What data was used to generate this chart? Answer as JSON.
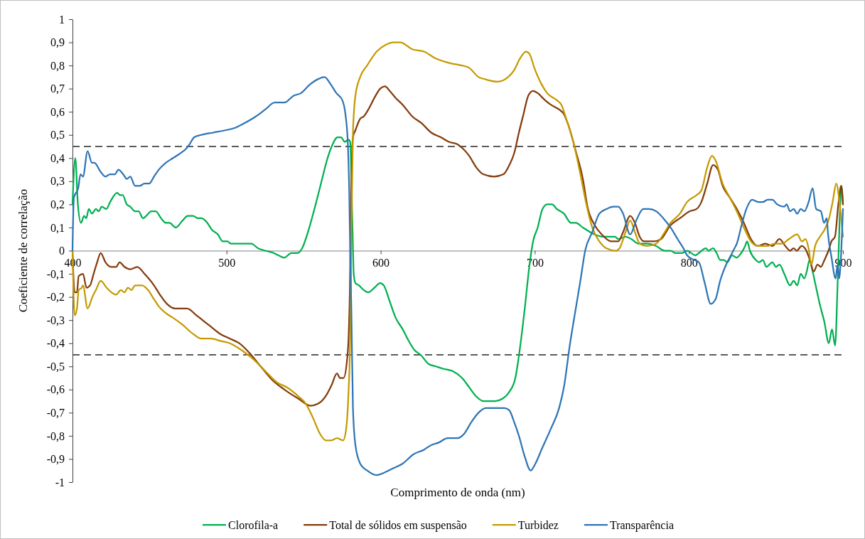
{
  "chart_data": {
    "type": "line",
    "xlabel": "Comprimento de onda (nm)",
    "ylabel": "Coeficiente de correlação",
    "xlim": [
      400,
      900
    ],
    "ylim": [
      -1,
      1
    ],
    "xticks": [
      400,
      500,
      600,
      700,
      800,
      900
    ],
    "yticks": [
      -1,
      {
        "value": -0.9,
        "label": "-0,9"
      },
      {
        "value": -0.8,
        "label": "-0,8"
      },
      {
        "value": -0.7,
        "label": "-0,7"
      },
      {
        "value": -0.6,
        "label": "-0,6"
      },
      {
        "value": -0.5,
        "label": "-0,5"
      },
      {
        "value": -0.4,
        "label": "-0,4"
      },
      {
        "value": -0.3,
        "label": "-0,3"
      },
      {
        "value": -0.2,
        "label": "-0,2"
      },
      {
        "value": -0.1,
        "label": "-0,1"
      },
      0,
      {
        "value": 0.1,
        "label": "0,1"
      },
      {
        "value": 0.2,
        "label": "0,2"
      },
      {
        "value": 0.3,
        "label": "0,3"
      },
      {
        "value": 0.4,
        "label": "0,4"
      },
      {
        "value": 0.5,
        "label": "0,5"
      },
      {
        "value": 0.6,
        "label": "0,6"
      },
      {
        "value": 0.7,
        "label": "0,7"
      },
      {
        "value": 0.8,
        "label": "0,8"
      },
      {
        "value": 0.9,
        "label": "0,9"
      },
      1
    ],
    "legend": "bottom",
    "ref_lines": [
      {
        "axis": "y",
        "value": 0.45,
        "color": "#262626",
        "line_style": "dashed"
      },
      {
        "axis": "y",
        "value": -0.45,
        "color": "#262626",
        "line_style": "dashed"
      }
    ],
    "series": [
      {
        "name": "Clorofila-a",
        "color": "#00b050",
        "x": [
          400,
          401.8,
          403.5,
          405.5,
          407.5,
          408.9,
          410.6,
          412.6,
          415.2,
          417,
          419,
          422,
          424.4,
          429,
          430.8,
          432.6,
          435.2,
          437.5,
          440.6,
          442.9,
          445.7,
          451.3,
          454,
          457.5,
          460.6,
          463,
          467,
          471.4,
          474.8,
          478.3,
          481.4,
          483.7,
          487.5,
          490.5,
          494.4,
          497.5,
          500.5,
          502.9,
          506,
          515.9,
          520.5,
          525,
          530.5,
          533.6,
          537.5,
          542,
          546,
          549,
          552.8,
          557.4,
          562,
          565.1,
          568.2,
          572,
          574.3,
          576.7,
          579,
          580.2,
          581.7,
          582.5,
          583.6,
          585.9,
          589,
          592,
          595.9,
          599.7,
          602,
          605.9,
          609.7,
          614.3,
          618.2,
          622,
          625.9,
          631.2,
          635.8,
          640.4,
          646.6,
          652.8,
          657.4,
          662,
          666.6,
          674.3,
          679,
          683.5,
          687.4,
          690.4,
          693.5,
          696.6,
          698.9,
          701.9,
          705,
          708.1,
          711.2,
          714.3,
          718.9,
          723.5,
          726.6,
          731.2,
          738.9,
          745,
          752,
          754.2,
          758.9,
          762.7,
          767.3,
          772.7,
          778.8,
          784.2,
          788.1,
          791.2,
          795.7,
          798.8,
          804.2,
          806.5,
          811.1,
          812.6,
          815.7,
          818,
          820.3,
          822.6,
          825,
          828,
          831,
          834,
          836.5,
          837.8,
          839.6,
          843.4,
          845.7,
          848,
          850.3,
          854.2,
          856.5,
          858.8,
          861.9,
          865.7,
          868,
          870.3,
          872.6,
          874.9,
          876.5,
          878.3,
          880.3,
          882.6,
          884.9,
          888,
          890.8,
          892.9,
          894.9,
          896.4,
          897.2,
          899,
          900
        ],
        "values": [
          0.2,
          0.4,
          0.2,
          0.12,
          0.15,
          0.14,
          0.18,
          0.16,
          0.18,
          0.17,
          0.19,
          0.18,
          0.21,
          0.25,
          0.24,
          0.24,
          0.2,
          0.19,
          0.17,
          0.17,
          0.14,
          0.17,
          0.17,
          0.14,
          0.12,
          0.12,
          0.1,
          0.13,
          0.15,
          0.15,
          0.14,
          0.14,
          0.12,
          0.09,
          0.07,
          0.04,
          0.04,
          0.03,
          0.03,
          0.03,
          0.01,
          0,
          -0.01,
          -0.02,
          -0.03,
          -0.01,
          -0.01,
          0.01,
          0.08,
          0.19,
          0.31,
          0.39,
          0.45,
          0.49,
          0.49,
          0.47,
          0.48,
          0.47,
          0.1,
          -0.1,
          -0.14,
          -0.15,
          -0.17,
          -0.18,
          -0.16,
          -0.14,
          -0.15,
          -0.22,
          -0.29,
          -0.34,
          -0.39,
          -0.43,
          -0.45,
          -0.49,
          -0.5,
          -0.51,
          -0.52,
          -0.55,
          -0.59,
          -0.63,
          -0.65,
          -0.65,
          -0.64,
          -0.61,
          -0.55,
          -0.42,
          -0.25,
          -0.06,
          0.04,
          0.1,
          0.18,
          0.2,
          0.2,
          0.18,
          0.16,
          0.12,
          0.12,
          0.1,
          0.07,
          0.06,
          0.06,
          0.05,
          0.06,
          0.05,
          0.03,
          0.03,
          0.02,
          0,
          0,
          -0.01,
          -0.01,
          0,
          -0.02,
          -0.01,
          0.01,
          0,
          0.01,
          -0.01,
          -0.04,
          -0.04,
          -0.05,
          -0.02,
          -0.03,
          -0.01,
          0.02,
          0.04,
          0,
          -0.04,
          -0.05,
          -0.04,
          -0.07,
          -0.05,
          -0.07,
          -0.06,
          -0.1,
          -0.15,
          -0.13,
          -0.15,
          -0.1,
          -0.12,
          -0.09,
          -0.04,
          -0.09,
          -0.16,
          -0.23,
          -0.31,
          -0.4,
          -0.34,
          -0.41,
          -0.17,
          0,
          0.28,
          0.2
        ]
      },
      {
        "name": "Total de sólidos em suspensão",
        "color": "#843c0c",
        "x": [
          400,
          401.4,
          402.9,
          404,
          406.8,
          409.1,
          411.4,
          413.7,
          416,
          418.3,
          421.4,
          425.2,
          428.3,
          430.6,
          433.7,
          437.5,
          442.1,
          446.7,
          452.9,
          456.7,
          461.3,
          466.7,
          474.4,
          480.5,
          488.2,
          495.9,
          502.1,
          508.2,
          515.9,
          522.1,
          529.8,
          537.5,
          546.7,
          554.4,
          559.7,
          565.1,
          568.2,
          571.6,
          573.6,
          575.9,
          578.2,
          579.2,
          580,
          581,
          582,
          583.6,
          586.7,
          589,
          592,
          595.9,
          599.7,
          602.8,
          605.9,
          609.7,
          614.3,
          620.5,
          626.6,
          632.8,
          639,
          644.3,
          649.7,
          653.5,
          657.4,
          662,
          666.6,
          673.5,
          679.7,
          683.5,
          686.6,
          689.7,
          692.7,
          695.8,
          698.9,
          702,
          706.6,
          710.5,
          715.8,
          718.9,
          721.9,
          726.6,
          731.2,
          734.2,
          738.9,
          743.5,
          749.6,
          754.2,
          757.3,
          761.9,
          765,
          768.1,
          771.1,
          777.3,
          781.9,
          788.1,
          794.2,
          800.4,
          805,
          808.1,
          811.9,
          815.7,
          818.8,
          821.9,
          826.5,
          831.1,
          835.7,
          840.3,
          844.9,
          849.6,
          854.2,
          858.8,
          862.6,
          865.7,
          868,
          870,
          873.2,
          876.2,
          878.5,
          881.1,
          883.4,
          885.7,
          888,
          890.6,
          892.5,
          894.8,
          897,
          898.8,
          900
        ],
        "values": [
          0,
          -0.18,
          -0.18,
          -0.11,
          -0.1,
          -0.16,
          -0.15,
          -0.1,
          -0.05,
          -0.01,
          -0.05,
          -0.07,
          -0.07,
          -0.05,
          -0.07,
          -0.08,
          -0.07,
          -0.1,
          -0.15,
          -0.19,
          -0.23,
          -0.25,
          -0.25,
          -0.28,
          -0.32,
          -0.36,
          -0.38,
          -0.4,
          -0.45,
          -0.5,
          -0.56,
          -0.6,
          -0.64,
          -0.67,
          -0.66,
          -0.62,
          -0.58,
          -0.53,
          -0.55,
          -0.55,
          -0.47,
          -0.37,
          -0.17,
          0.3,
          0.49,
          0.52,
          0.57,
          0.58,
          0.61,
          0.66,
          0.7,
          0.71,
          0.69,
          0.66,
          0.63,
          0.58,
          0.55,
          0.51,
          0.49,
          0.47,
          0.46,
          0.44,
          0.41,
          0.36,
          0.33,
          0.32,
          0.33,
          0.37,
          0.42,
          0.51,
          0.59,
          0.67,
          0.69,
          0.68,
          0.65,
          0.63,
          0.61,
          0.59,
          0.54,
          0.43,
          0.31,
          0.19,
          0.11,
          0.07,
          0.04,
          0.04,
          0.08,
          0.15,
          0.12,
          0.06,
          0.04,
          0.04,
          0.05,
          0.11,
          0.14,
          0.17,
          0.18,
          0.21,
          0.29,
          0.37,
          0.35,
          0.28,
          0.23,
          0.18,
          0.12,
          0.05,
          0.02,
          0.03,
          0.02,
          0.05,
          0.02,
          0,
          0.01,
          0,
          0.02,
          0,
          -0.04,
          -0.09,
          -0.06,
          -0.07,
          -0.04,
          0,
          0.04,
          0.06,
          0.2,
          0.28,
          0.2
        ]
      },
      {
        "name": "Turbidez",
        "color": "#c49a00",
        "x": [
          400,
          401.4,
          402.9,
          404,
          406,
          406.8,
          409.8,
          412.9,
          415.2,
          418.3,
          422.1,
          428.3,
          431.4,
          433.7,
          436,
          438.3,
          440.6,
          445.2,
          449,
          452.9,
          455.9,
          460.6,
          465.2,
          471.4,
          478.3,
          483.6,
          489.8,
          495.9,
          502.1,
          509.8,
          517.5,
          525.1,
          532.8,
          539,
          546.7,
          551.3,
          555.9,
          560.5,
          564.4,
          568,
          571.6,
          575.6,
          577.4,
          579,
          580.2,
          581,
          582,
          583.6,
          586.7,
          591.2,
          597.4,
          603.5,
          608.1,
          612.7,
          620.5,
          628.1,
          635.8,
          645,
          652.8,
          657.4,
          663.5,
          668.1,
          675.8,
          682.7,
          686.6,
          690.4,
          694.3,
          696.6,
          699.7,
          704.3,
          708.1,
          714.3,
          717.3,
          720.4,
          725,
          729.6,
          733.5,
          737.3,
          741.9,
          746.5,
          752.6,
          755,
          758.9,
          761.9,
          765,
          768.1,
          772.7,
          778.8,
          783.4,
          788.1,
          794.2,
          798.8,
          805,
          808.1,
          811.9,
          815,
          817.3,
          821.9,
          826.5,
          831.1,
          835.7,
          840.3,
          844.9,
          851.1,
          855.7,
          860.3,
          864.9,
          870.3,
          873.4,
          875.7,
          877.7,
          879.5,
          881.9,
          885,
          888,
          891,
          893.3,
          895.6,
          897.9,
          900
        ],
        "values": [
          0,
          -0.28,
          -0.25,
          -0.17,
          -0.16,
          -0.15,
          -0.25,
          -0.2,
          -0.17,
          -0.13,
          -0.16,
          -0.19,
          -0.17,
          -0.18,
          -0.16,
          -0.17,
          -0.15,
          -0.15,
          -0.17,
          -0.21,
          -0.24,
          -0.27,
          -0.29,
          -0.32,
          -0.36,
          -0.38,
          -0.38,
          -0.39,
          -0.4,
          -0.43,
          -0.47,
          -0.52,
          -0.57,
          -0.59,
          -0.63,
          -0.66,
          -0.72,
          -0.79,
          -0.82,
          -0.82,
          -0.81,
          -0.82,
          -0.78,
          -0.63,
          -0.37,
          0.1,
          0.51,
          0.67,
          0.75,
          0.8,
          0.86,
          0.89,
          0.9,
          0.9,
          0.87,
          0.86,
          0.83,
          0.81,
          0.8,
          0.79,
          0.75,
          0.74,
          0.73,
          0.75,
          0.78,
          0.83,
          0.86,
          0.85,
          0.79,
          0.72,
          0.68,
          0.65,
          0.63,
          0.57,
          0.47,
          0.33,
          0.2,
          0.1,
          0.04,
          0.01,
          0,
          0.01,
          0.08,
          0.13,
          0.08,
          0.03,
          0.02,
          0.03,
          0.07,
          0.12,
          0.16,
          0.21,
          0.24,
          0.26,
          0.36,
          0.41,
          0.39,
          0.29,
          0.23,
          0.17,
          0.1,
          0.04,
          0.02,
          0.02,
          0.03,
          0.03,
          0.05,
          0.07,
          0.04,
          0.05,
          0.01,
          -0.06,
          0.02,
          0.06,
          0.09,
          0.14,
          0.21,
          0.29,
          0.2,
          0.06
        ]
      },
      {
        "name": "Transparência",
        "color": "#2e75b6",
        "x": [
          400,
          400.9,
          403.7,
          405.2,
          406.8,
          409.8,
          412.6,
          414.2,
          418.3,
          421.4,
          424.4,
          427.5,
          429.8,
          432.9,
          435.2,
          437.5,
          440.6,
          443.7,
          446.7,
          449.8,
          452.9,
          456,
          460.6,
          465.2,
          469.8,
          473.7,
          476,
          479,
          483.6,
          491.3,
          499,
          505.2,
          511.3,
          519,
          525.1,
          531.3,
          537.5,
          543.6,
          548.2,
          554.4,
          559,
          563.6,
          567.4,
          571.3,
          575.1,
          577.1,
          578.7,
          579.6,
          580.2,
          581,
          582,
          583.6,
          586.7,
          591.2,
          597.4,
          602,
          608.1,
          614.3,
          621.2,
          628.1,
          632.8,
          637.4,
          643.5,
          649.7,
          654.3,
          658.9,
          663.5,
          668.1,
          674.3,
          680.4,
          683.5,
          686.6,
          689.7,
          693.5,
          697.3,
          700.4,
          705,
          710.4,
          715.8,
          718.9,
          722.7,
          726.6,
          729.6,
          732.7,
          737.3,
          741.9,
          746.5,
          751.1,
          754.2,
          757.3,
          761.9,
          765.8,
          770.4,
          774,
          778.8,
          783.4,
          788.1,
          792.7,
          797.3,
          798.8,
          803.4,
          806.5,
          810.3,
          814.2,
          817.3,
          820.3,
          824.2,
          827.3,
          829.6,
          831.1,
          834.2,
          837.3,
          841.1,
          845,
          848,
          851.1,
          854.2,
          857.3,
          861.9,
          863.4,
          865.7,
          868,
          870.3,
          872.6,
          874.9,
          877.7,
          880.3,
          882.6,
          885.7,
          887.7,
          889.5,
          890.2,
          892.6,
          895.2,
          896.5,
          897.5,
          898.5,
          900
        ],
        "values": [
          0,
          0.23,
          0.27,
          0.33,
          0.32,
          0.43,
          0.38,
          0.38,
          0.34,
          0.32,
          0.33,
          0.33,
          0.35,
          0.33,
          0.31,
          0.32,
          0.28,
          0.28,
          0.29,
          0.29,
          0.32,
          0.35,
          0.38,
          0.4,
          0.42,
          0.44,
          0.46,
          0.49,
          0.5,
          0.51,
          0.52,
          0.53,
          0.55,
          0.58,
          0.61,
          0.64,
          0.64,
          0.67,
          0.68,
          0.72,
          0.74,
          0.75,
          0.72,
          0.68,
          0.65,
          0.59,
          0.46,
          0.25,
          0,
          -0.27,
          -0.68,
          -0.84,
          -0.92,
          -0.95,
          -0.97,
          -0.96,
          -0.94,
          -0.92,
          -0.88,
          -0.86,
          -0.84,
          -0.83,
          -0.81,
          -0.81,
          -0.79,
          -0.74,
          -0.7,
          -0.68,
          -0.68,
          -0.68,
          -0.69,
          -0.74,
          -0.8,
          -0.89,
          -0.95,
          -0.92,
          -0.85,
          -0.77,
          -0.68,
          -0.59,
          -0.41,
          -0.25,
          -0.13,
          0,
          0.08,
          0.16,
          0.18,
          0.19,
          0.19,
          0.16,
          0.07,
          0.13,
          0.18,
          0.18,
          0.17,
          0.14,
          0.1,
          0.05,
          0,
          -0.02,
          -0.04,
          -0.05,
          -0.14,
          -0.23,
          -0.21,
          -0.13,
          -0.06,
          -0.02,
          0.01,
          0.03,
          0.11,
          0.18,
          0.22,
          0.21,
          0.21,
          0.22,
          0.22,
          0.2,
          0.19,
          0.2,
          0.17,
          0.18,
          0.16,
          0.18,
          0.17,
          0.21,
          0.27,
          0.18,
          0.17,
          0.12,
          0.14,
          0.08,
          -0.03,
          -0.12,
          -0.06,
          -0.12,
          -0.05,
          0.18
        ]
      }
    ]
  }
}
